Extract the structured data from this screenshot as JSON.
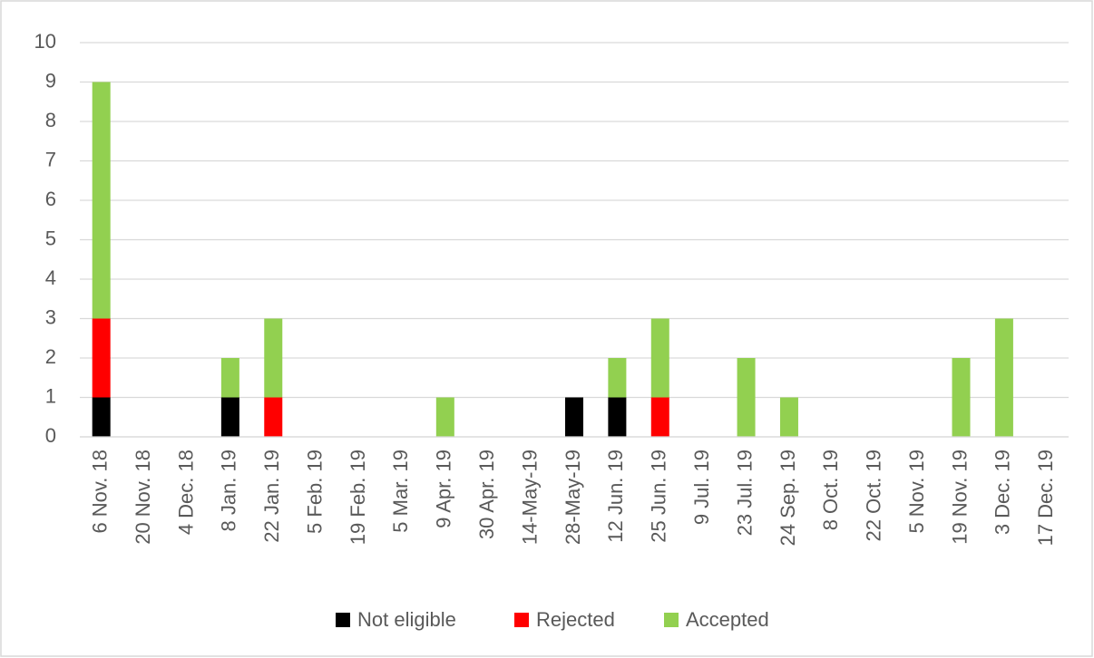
{
  "chart_data": {
    "type": "stacked_bar",
    "categories": [
      "6 Nov. 18",
      "20 Nov. 18",
      "4 Dec. 18",
      "8 Jan. 19",
      "22 Jan. 19",
      "5 Feb. 19",
      "19 Feb. 19",
      "5 Mar. 19",
      "9 Apr. 19",
      "30 Apr. 19",
      "14-May-19",
      "28-May-19",
      "12 Jun. 19",
      "25 Jun. 19",
      "9 Jul. 19",
      "23 Jul. 19",
      "24 Sep. 19",
      "8 Oct. 19",
      "22 Oct. 19",
      "5 Nov. 19",
      "19 Nov. 19",
      "3 Dec. 19",
      "17 Dec. 19"
    ],
    "series": [
      {
        "name": "Not eligible",
        "color": "#000000",
        "values": [
          1,
          0,
          0,
          1,
          0,
          0,
          0,
          0,
          0,
          0,
          0,
          1,
          1,
          0,
          0,
          0,
          0,
          0,
          0,
          0,
          0,
          0,
          0
        ]
      },
      {
        "name": "Rejected",
        "color": "#ff0000",
        "values": [
          2,
          0,
          0,
          0,
          1,
          0,
          0,
          0,
          0,
          0,
          0,
          0,
          0,
          1,
          0,
          0,
          0,
          0,
          0,
          0,
          0,
          0,
          0
        ]
      },
      {
        "name": "Accepted",
        "color": "#92d050",
        "values": [
          6,
          0,
          0,
          1,
          2,
          0,
          0,
          0,
          1,
          0,
          0,
          0,
          1,
          2,
          0,
          2,
          1,
          0,
          0,
          0,
          2,
          3,
          0
        ]
      }
    ],
    "ylim": [
      0,
      10
    ],
    "yticks": [
      0,
      1,
      2,
      3,
      4,
      5,
      6,
      7,
      8,
      9,
      10
    ],
    "grid": true,
    "legend": "bottom"
  }
}
